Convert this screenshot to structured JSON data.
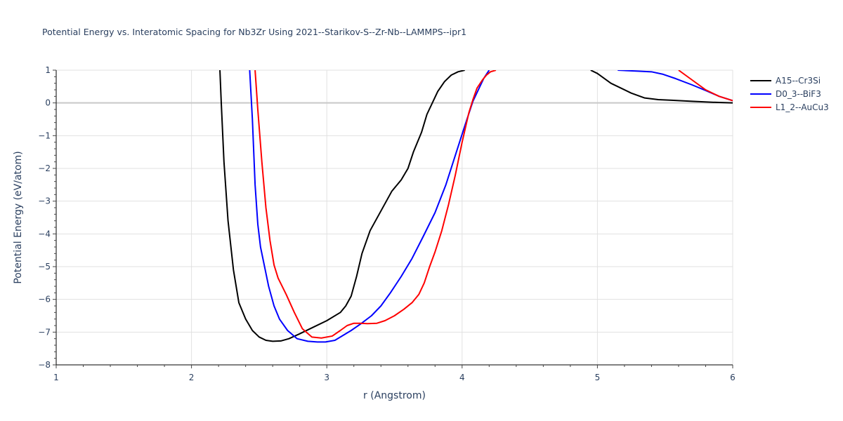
{
  "chart_data": {
    "type": "line",
    "title": "Potential Energy vs. Interatomic Spacing for Nb3Zr Using 2021--Starikov-S--Zr-Nb--LAMMPS--ipr1",
    "xlabel": "r (Angstrom)",
    "ylabel": "Potential Energy (eV/atom)",
    "xlim": [
      1,
      6
    ],
    "ylim": [
      -8,
      1
    ],
    "xticks": [
      1,
      2,
      3,
      4,
      5,
      6
    ],
    "yticks": [
      -8,
      -7,
      -6,
      -5,
      -4,
      -3,
      -2,
      -1,
      0,
      1
    ],
    "grid": true,
    "legend_position": "top-right",
    "series": [
      {
        "name": "A15--Cr3Si",
        "color": "#000000",
        "x": [
          2.21,
          2.22,
          2.24,
          2.27,
          2.31,
          2.35,
          2.4,
          2.45,
          2.5,
          2.55,
          2.6,
          2.66,
          2.72,
          2.8,
          2.9,
          3.0,
          3.1,
          3.14,
          3.18,
          3.22,
          3.26,
          3.32,
          3.4,
          3.48,
          3.55,
          3.6,
          3.64,
          3.7,
          3.74,
          3.78,
          3.82,
          3.87,
          3.92,
          3.97,
          4.02,
          4.06,
          4.95,
          5.0,
          5.1,
          5.25,
          5.35,
          5.45,
          5.55,
          5.7,
          5.85,
          6.0
        ],
        "y": [
          1.0,
          0.0,
          -1.8,
          -3.6,
          -5.1,
          -6.1,
          -6.6,
          -6.95,
          -7.15,
          -7.25,
          -7.28,
          -7.27,
          -7.2,
          -7.05,
          -6.85,
          -6.65,
          -6.4,
          -6.2,
          -5.9,
          -5.3,
          -4.6,
          -3.9,
          -3.3,
          -2.7,
          -2.35,
          -2.0,
          -1.5,
          -0.9,
          -0.35,
          0.0,
          0.35,
          0.65,
          0.85,
          0.95,
          1.0,
          1.05,
          1.0,
          0.9,
          0.6,
          0.3,
          0.15,
          0.1,
          0.08,
          0.05,
          0.02,
          0.0
        ]
      },
      {
        "name": "D0_3--BiF3",
        "color": "#0000ff",
        "x": [
          2.43,
          2.45,
          2.47,
          2.49,
          2.51,
          2.54,
          2.57,
          2.61,
          2.65,
          2.71,
          2.78,
          2.86,
          2.93,
          2.99,
          3.06,
          3.12,
          3.18,
          3.25,
          3.33,
          3.4,
          3.47,
          3.55,
          3.63,
          3.71,
          3.8,
          3.88,
          3.95,
          4.02,
          4.08,
          4.12,
          4.16,
          4.2,
          5.15,
          5.3,
          5.4,
          5.48,
          5.58,
          5.7,
          5.8,
          5.9,
          6.0
        ],
        "y": [
          1.0,
          -0.5,
          -2.5,
          -3.7,
          -4.4,
          -5.0,
          -5.6,
          -6.2,
          -6.6,
          -6.95,
          -7.2,
          -7.28,
          -7.3,
          -7.3,
          -7.25,
          -7.1,
          -6.95,
          -6.75,
          -6.5,
          -6.2,
          -5.8,
          -5.3,
          -4.75,
          -4.1,
          -3.35,
          -2.5,
          -1.6,
          -0.7,
          0.05,
          0.4,
          0.75,
          1.0,
          1.0,
          0.97,
          0.95,
          0.88,
          0.74,
          0.55,
          0.38,
          0.2,
          0.07
        ]
      },
      {
        "name": "L1_2--AuCu3",
        "color": "#ff0000",
        "x": [
          2.47,
          2.49,
          2.52,
          2.55,
          2.58,
          2.61,
          2.64,
          2.7,
          2.76,
          2.82,
          2.89,
          2.96,
          3.04,
          3.1,
          3.15,
          3.2,
          3.25,
          3.3,
          3.37,
          3.43,
          3.5,
          3.57,
          3.63,
          3.68,
          3.72,
          3.76,
          3.8,
          3.85,
          3.9,
          3.95,
          4.0,
          4.05,
          4.08,
          4.11,
          4.15,
          4.18,
          4.21,
          4.25,
          5.6,
          5.7,
          5.8,
          5.9,
          6.0
        ],
        "y": [
          1.0,
          -0.2,
          -1.8,
          -3.2,
          -4.2,
          -4.95,
          -5.35,
          -5.85,
          -6.4,
          -6.9,
          -7.15,
          -7.18,
          -7.12,
          -6.95,
          -6.8,
          -6.73,
          -6.73,
          -6.74,
          -6.73,
          -6.65,
          -6.5,
          -6.3,
          -6.1,
          -5.85,
          -5.5,
          -5.0,
          -4.55,
          -3.9,
          -3.1,
          -2.2,
          -1.2,
          -0.3,
          0.1,
          0.45,
          0.7,
          0.85,
          0.95,
          1.0,
          1.0,
          0.7,
          0.4,
          0.2,
          0.07
        ]
      }
    ]
  }
}
